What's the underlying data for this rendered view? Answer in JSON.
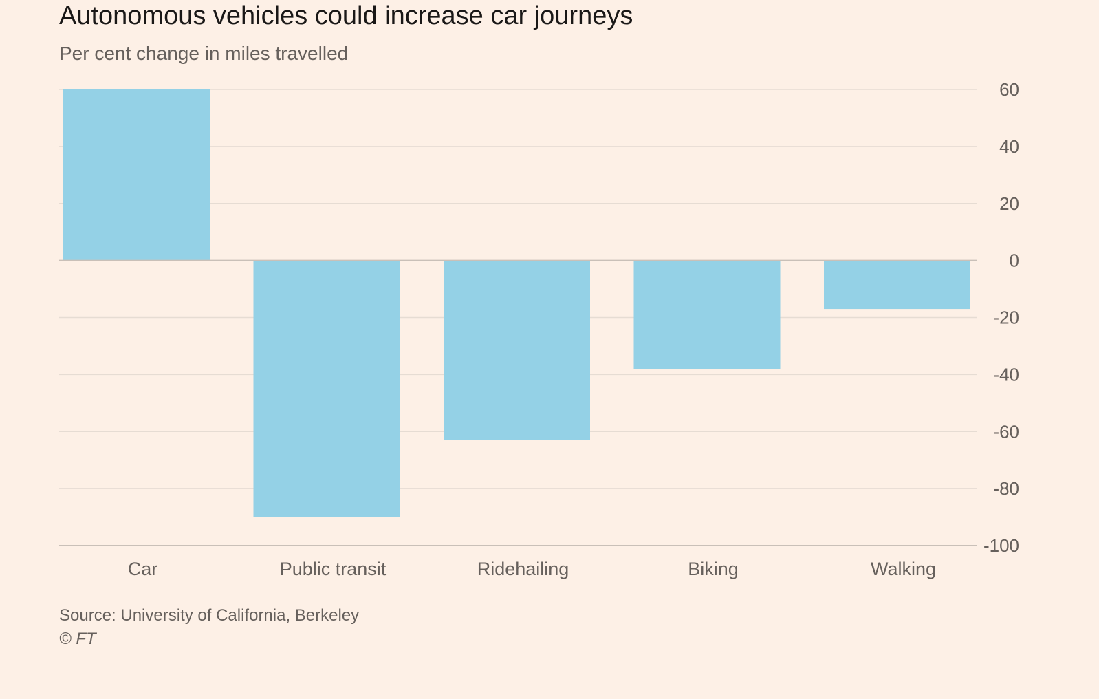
{
  "title": "Autonomous vehicles could increase car journeys",
  "subtitle": "Per cent change in miles travelled",
  "source": "Source: University of California, Berkeley",
  "copyright": "© FT",
  "colors": {
    "background": "#fdf0e6",
    "bar": "#94d1e6",
    "grid": "#e6dcd3",
    "baseline": "#c9c0b8",
    "text": "#66605c"
  },
  "chart_data": {
    "type": "bar",
    "categories": [
      "Car",
      "Public transit",
      "Ridehailing",
      "Biking",
      "Walking"
    ],
    "values": [
      60,
      -90,
      -63,
      -38,
      -17
    ],
    "ylim": [
      -100,
      60
    ],
    "yticks": [
      60,
      40,
      20,
      0,
      -20,
      -40,
      -60,
      -80,
      -100
    ],
    "ytick_labels": [
      "60",
      "40",
      "20",
      "0",
      "-20",
      "-40",
      "-60",
      "-80",
      "-100"
    ],
    "y_axis_position": "right",
    "grid": true,
    "xlabel": "",
    "ylabel": ""
  }
}
